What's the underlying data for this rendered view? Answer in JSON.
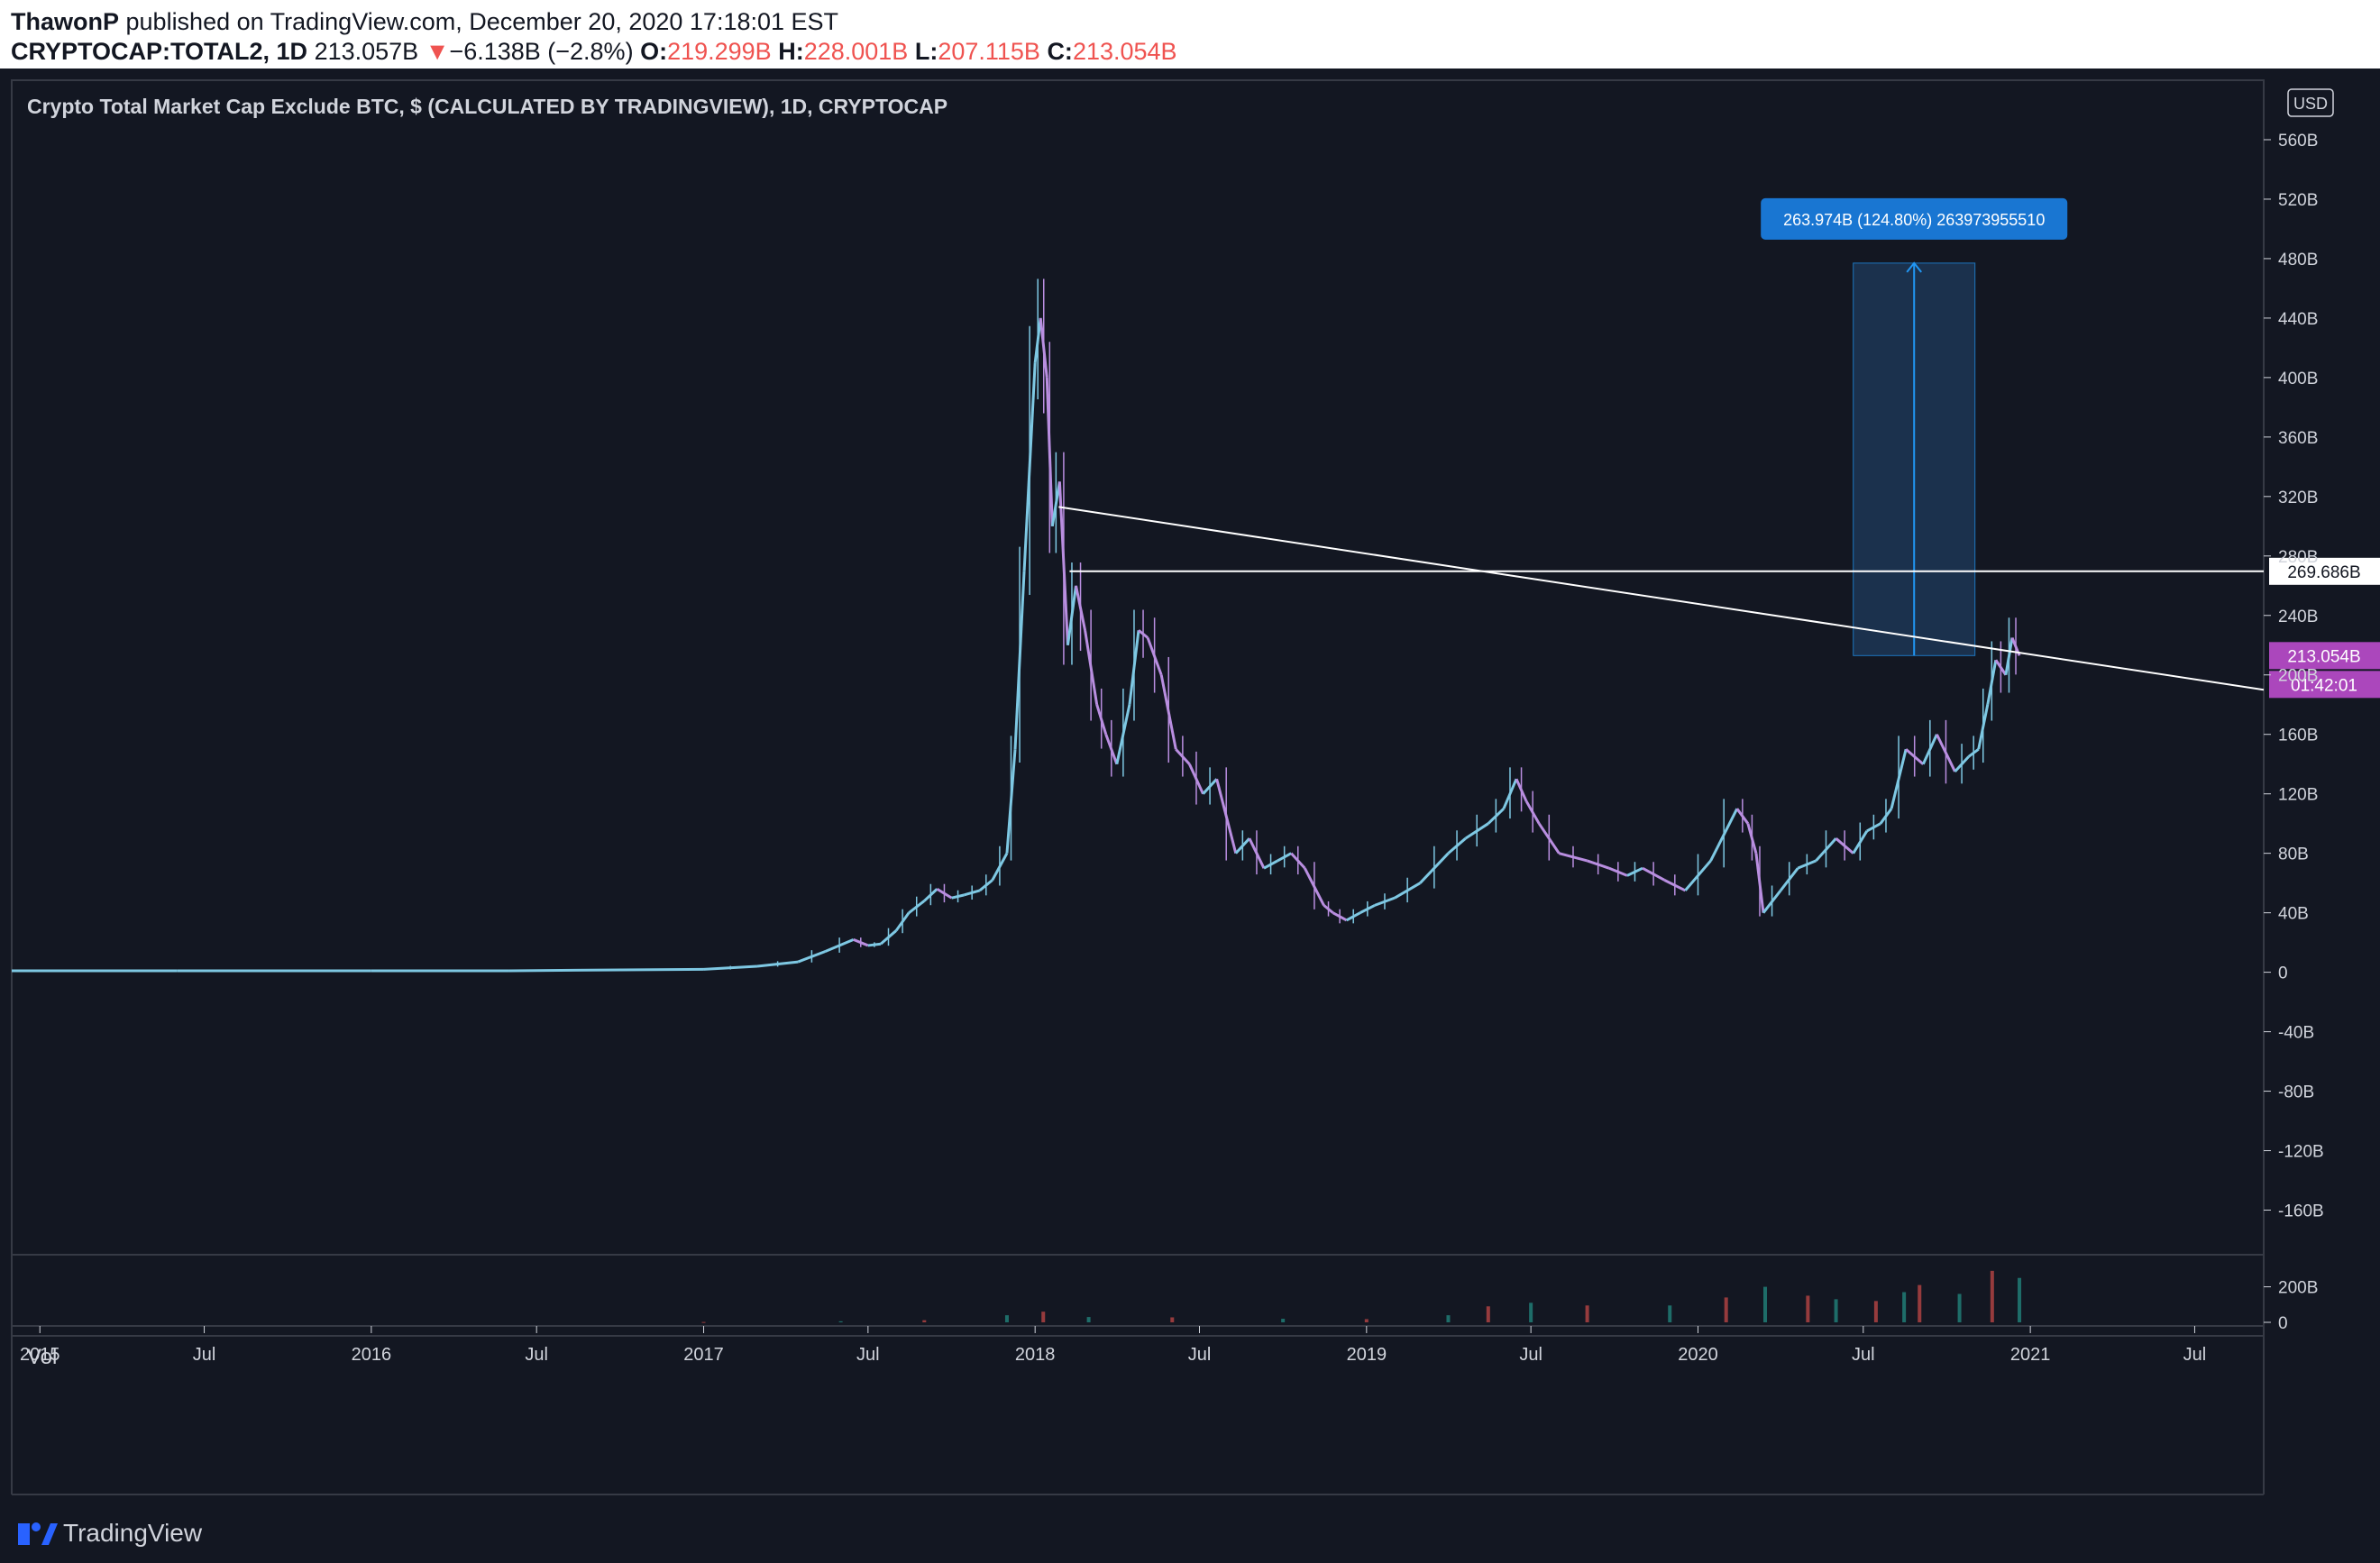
{
  "header": {
    "author": "ThawonP",
    "published_text": "published on TradingView.com, December 20, 2020 17:18:01 EST",
    "symbol": "CRYPTOCAP:TOTAL2, 1D",
    "last": "213.057B",
    "arrow": "▼",
    "change": "−6.138B (−2.8%)",
    "o_label": "O:",
    "o_value": "219.299B",
    "h_label": "H:",
    "h_value": "228.001B",
    "l_label": "L:",
    "l_value": "207.115B",
    "c_label": "C:",
    "c_value": "213.054B"
  },
  "footer": {
    "brand": "TradingView"
  },
  "colors": {
    "background": "#131722",
    "candle_up": "#7ec8e3",
    "candle_down": "#b98ee0",
    "price_label": "#ab47bc",
    "measure_fill": "#1e3a5c",
    "measure_label": "#1976d2"
  },
  "chart_data": {
    "type": "candlestick",
    "title": "Crypto Total Market Cap Exclude BTC, $ (CALCULATED BY TRADINGVIEW), 1D, CRYPTOCAP",
    "currency_button": "USD",
    "y_axis": {
      "unit": "B",
      "range": [
        -190,
        600
      ],
      "ticks": [
        "560B",
        "520B",
        "480B",
        "440B",
        "400B",
        "360B",
        "320B",
        "280B",
        "240B",
        "200B",
        "160B",
        "120B",
        "80B",
        "40B",
        "0",
        "-40B",
        "-80B",
        "-120B",
        "-160B"
      ]
    },
    "x_axis": {
      "range": [
        "2014-12-01",
        "2021-09-15"
      ],
      "ticks": [
        {
          "label": "2015",
          "date": "2015-01-01"
        },
        {
          "label": "Jul",
          "date": "2015-07-01"
        },
        {
          "label": "2016",
          "date": "2016-01-01"
        },
        {
          "label": "Jul",
          "date": "2016-07-01"
        },
        {
          "label": "2017",
          "date": "2017-01-01"
        },
        {
          "label": "Jul",
          "date": "2017-07-01"
        },
        {
          "label": "2018",
          "date": "2018-01-01"
        },
        {
          "label": "Jul",
          "date": "2018-07-01"
        },
        {
          "label": "2019",
          "date": "2019-01-01"
        },
        {
          "label": "Jul",
          "date": "2019-07-01"
        },
        {
          "label": "2020",
          "date": "2020-01-01"
        },
        {
          "label": "Jul",
          "date": "2020-07-01"
        },
        {
          "label": "2021",
          "date": "2021-01-01"
        },
        {
          "label": "Jul",
          "date": "2021-07-01"
        }
      ]
    },
    "series": [
      {
        "name": "TOTAL2",
        "x": [
          "2014-12-01",
          "2015-06-01",
          "2016-01-01",
          "2016-06-01",
          "2017-01-01",
          "2017-03-01",
          "2017-04-15",
          "2017-05-15",
          "2017-06-15",
          "2017-07-01",
          "2017-07-15",
          "2017-08-01",
          "2017-08-15",
          "2017-09-01",
          "2017-09-15",
          "2017-10-01",
          "2017-10-15",
          "2017-11-01",
          "2017-11-15",
          "2017-12-01",
          "2017-12-10",
          "2017-12-20",
          "2018-01-01",
          "2018-01-07",
          "2018-01-14",
          "2018-01-20",
          "2018-01-28",
          "2018-02-06",
          "2018-02-15",
          "2018-02-25",
          "2018-03-10",
          "2018-03-20",
          "2018-04-01",
          "2018-04-15",
          "2018-04-25",
          "2018-05-05",
          "2018-05-20",
          "2018-06-05",
          "2018-06-20",
          "2018-07-05",
          "2018-07-20",
          "2018-08-10",
          "2018-08-25",
          "2018-09-10",
          "2018-09-25",
          "2018-10-10",
          "2018-10-25",
          "2018-11-15",
          "2018-11-25",
          "2018-12-10",
          "2018-12-25",
          "2019-01-10",
          "2019-02-01",
          "2019-03-01",
          "2019-04-01",
          "2019-04-20",
          "2019-05-15",
          "2019-06-01",
          "2019-06-15",
          "2019-06-26",
          "2019-07-10",
          "2019-08-01",
          "2019-09-01",
          "2019-09-25",
          "2019-10-15",
          "2019-11-01",
          "2019-11-25",
          "2019-12-18",
          "2020-01-15",
          "2020-02-13",
          "2020-02-25",
          "2020-03-05",
          "2020-03-13",
          "2020-04-01",
          "2020-04-20",
          "2020-05-10",
          "2020-06-01",
          "2020-06-20",
          "2020-07-05",
          "2020-07-20",
          "2020-08-01",
          "2020-08-17",
          "2020-09-05",
          "2020-09-20",
          "2020-10-10",
          "2020-10-25",
          "2020-11-05",
          "2020-11-15",
          "2020-11-24",
          "2020-12-05",
          "2020-12-12",
          "2020-12-20"
        ],
        "close": [
          1,
          1,
          1,
          1,
          2,
          4,
          7,
          14,
          22,
          18,
          19,
          28,
          40,
          48,
          56,
          50,
          52,
          55,
          62,
          80,
          150,
          270,
          410,
          440,
          400,
          300,
          330,
          220,
          260,
          230,
          180,
          160,
          140,
          180,
          230,
          225,
          200,
          150,
          140,
          120,
          130,
          80,
          90,
          70,
          75,
          80,
          70,
          45,
          40,
          35,
          40,
          45,
          50,
          60,
          80,
          90,
          100,
          110,
          130,
          115,
          100,
          80,
          75,
          70,
          65,
          70,
          62,
          55,
          75,
          110,
          100,
          80,
          40,
          55,
          70,
          75,
          90,
          80,
          95,
          100,
          110,
          150,
          140,
          160,
          135,
          145,
          150,
          180,
          210,
          200,
          225,
          213
        ]
      }
    ],
    "annotations": {
      "measure_label": "263.974B (124.80%) 263973955510",
      "measure_from": 213,
      "measure_to": 477,
      "measure_dates": [
        "2020-06-20",
        "2020-11-01"
      ],
      "hline_value": 269.686,
      "hline_label": "269.686B",
      "hline_start_date": "2018-02-08",
      "trendline": [
        {
          "date": "2018-01-27",
          "value": 313
        },
        {
          "date": "2021-09-15",
          "value": 190
        }
      ],
      "last_price_label": "213.054B",
      "countdown_label": "01:42:01"
    },
    "volume": {
      "name": "Vol",
      "ticks": [
        "200B",
        "0"
      ],
      "range": [
        0,
        340
      ],
      "x": [
        "2017-01-01",
        "2017-06-01",
        "2017-09-01",
        "2017-12-01",
        "2018-01-10",
        "2018-03-01",
        "2018-06-01",
        "2018-10-01",
        "2019-01-01",
        "2019-04-01",
        "2019-05-15",
        "2019-07-01",
        "2019-09-01",
        "2019-12-01",
        "2020-02-01",
        "2020-03-15",
        "2020-05-01",
        "2020-06-01",
        "2020-07-15",
        "2020-08-15",
        "2020-09-01",
        "2020-10-15",
        "2020-11-20",
        "2020-12-20"
      ],
      "values": [
        2,
        6,
        12,
        40,
        60,
        30,
        28,
        20,
        18,
        40,
        90,
        110,
        95,
        95,
        140,
        200,
        150,
        130,
        120,
        170,
        210,
        160,
        290,
        250
      ]
    },
    "grid": false,
    "legend": "none"
  }
}
